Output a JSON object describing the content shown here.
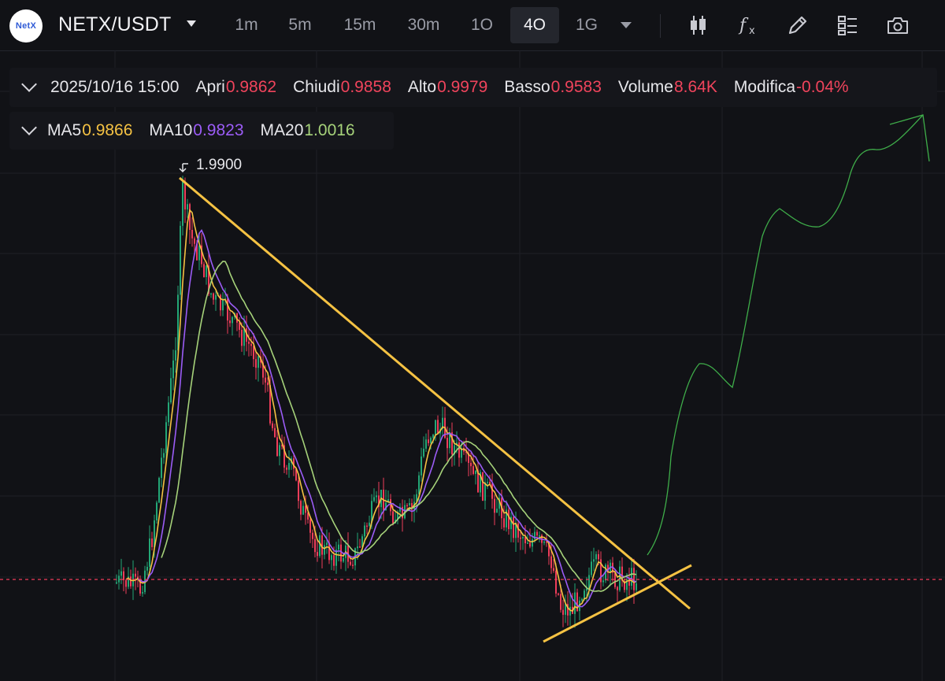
{
  "header": {
    "logo_text": "NetX",
    "pair": "NETX/USDT",
    "timeframes": [
      "1m",
      "5m",
      "15m",
      "30m",
      "1O",
      "4O",
      "1G"
    ],
    "active_timeframe": "4O",
    "tool_icons": [
      "candlestick-icon",
      "function-icon",
      "pencil-icon",
      "layout-icon",
      "camera-icon"
    ]
  },
  "ohlc": {
    "datetime": "2025/10/16 15:00",
    "open_label": "Apri",
    "open": "0.9862",
    "close_label": "Chiudi",
    "close": "0.9858",
    "high_label": "Alto",
    "high": "0.9979",
    "low_label": "Basso",
    "low": "0.9583",
    "volume_label": "Volume",
    "volume": "8.64K",
    "change_label": "Modifica",
    "change": "-0.04%"
  },
  "ma": {
    "ma5_label": "MA5",
    "ma5": "0.9866",
    "ma10_label": "MA10",
    "ma10": "0.9823",
    "ma20_label": "MA20",
    "ma20": "1.0016"
  },
  "chart": {
    "high_marker": "1.9900",
    "current_price": 0.9858,
    "colors": {
      "up": "#23a776",
      "down": "#ef3d5a",
      "ma5": "#f5c243",
      "ma10": "#9b5cf6",
      "ma20": "#a6d27a",
      "trendline": "#f5c243",
      "projection": "#3fae4a",
      "price_line": "#ef3d5a",
      "grid": "#1e2026",
      "background": "#111216"
    }
  }
}
